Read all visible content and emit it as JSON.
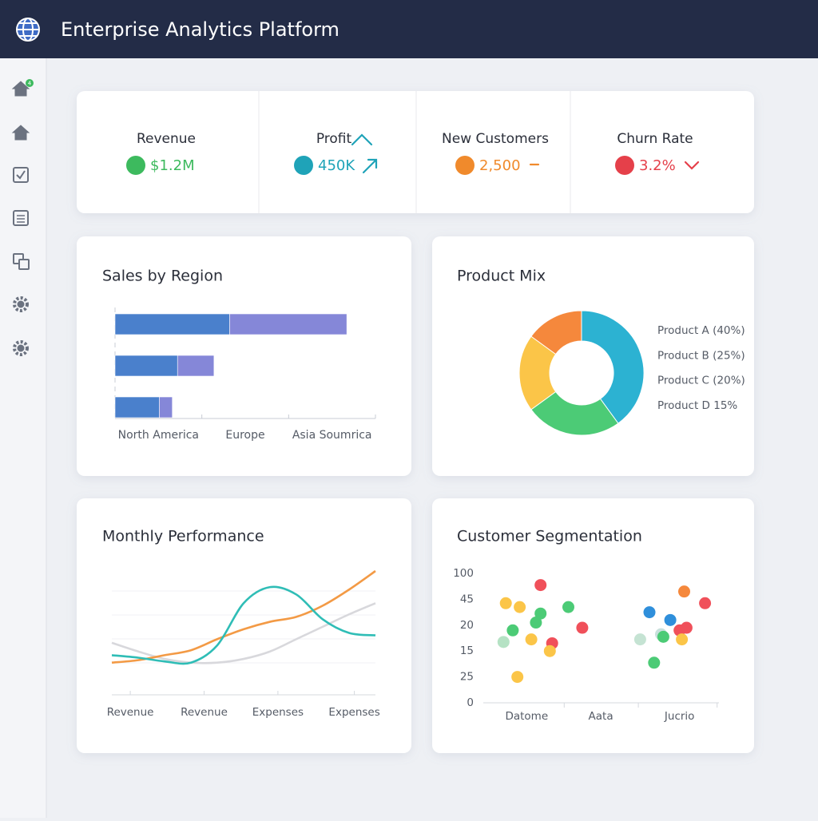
{
  "header": {
    "title": "Enterprise Analytics Platform"
  },
  "sidebar": {
    "badge": "4"
  },
  "kpis": [
    {
      "label": "Revenue",
      "value": "$1.2M",
      "color": "#3dba5e"
    },
    {
      "label": "Profit",
      "value": "450K",
      "color": "#1fa3b8"
    },
    {
      "label": "New Customers",
      "value": "2,500",
      "color": "#f08a2c"
    },
    {
      "label": "Churn Rate",
      "value": "3.2%",
      "color": "#e5404a"
    }
  ],
  "chart_data": [
    {
      "type": "hbar",
      "title": "Sales by Region",
      "categories": [
        "North America",
        "Europe",
        "Asia Soumrica"
      ],
      "xlim": [
        0,
        100
      ],
      "series": [
        {
          "color": "#4a80cc",
          "values": [
            44,
            24,
            17
          ]
        },
        {
          "color": "#8587d8",
          "values": [
            45,
            14,
            5
          ]
        }
      ]
    },
    {
      "type": "donut",
      "title": "Product Mix",
      "categories": [
        "Product A (40%)",
        "Product B (25%)",
        "Product C (20%)",
        "Product D 15%"
      ],
      "values": [
        40,
        25,
        20,
        15
      ],
      "colors": [
        "#2cb2d2",
        "#4ccb76",
        "#fbc548",
        "#f5883c"
      ]
    },
    {
      "type": "line",
      "title": "Monthly Performance",
      "x": [
        0,
        1,
        2,
        3,
        4,
        5,
        6,
        7,
        8,
        9,
        10
      ],
      "xlim": [
        0,
        10
      ],
      "ylim": [
        0,
        100
      ],
      "xticks": [
        {
          "value": 0.7,
          "label": "Revenue"
        },
        {
          "value": 3.5,
          "label": "Revenue"
        },
        {
          "value": 6.3,
          "label": "Expenses"
        },
        {
          "value": 9.2,
          "label": "Expenses"
        }
      ],
      "series": [
        {
          "color": "#d8d8dc",
          "values": [
            42,
            35,
            29,
            26,
            26,
            29,
            35,
            45,
            55,
            65,
            74
          ]
        },
        {
          "color": "#f39a45",
          "values": [
            26,
            28,
            32,
            36,
            45,
            53,
            59,
            63,
            72,
            85,
            100
          ]
        },
        {
          "color": "#2fbdb6",
          "values": [
            32,
            30,
            27,
            26,
            40,
            74,
            87,
            81,
            61,
            50,
            48
          ]
        }
      ]
    },
    {
      "type": "scatter",
      "title": "Customer Segmentation",
      "xlim": [
        0,
        100
      ],
      "ylim": [
        0,
        100
      ],
      "yticks": [
        {
          "value": 100,
          "label": "100"
        },
        {
          "value": 80,
          "label": "45"
        },
        {
          "value": 60,
          "label": "20"
        },
        {
          "value": 40,
          "label": "15"
        },
        {
          "value": 20,
          "label": "25"
        },
        0
      ],
      "xticks": [
        {
          "value": 17,
          "label": "Datome"
        },
        {
          "value": 49,
          "label": "Aata"
        },
        {
          "value": 83,
          "label": "Jucrio"
        }
      ],
      "x": [
        8,
        14,
        23,
        23,
        35,
        11,
        7,
        21,
        19,
        28,
        27,
        41,
        13,
        85,
        94,
        70,
        79,
        86,
        66,
        75,
        76,
        83,
        84,
        72
      ],
      "values": [
        77,
        74,
        91,
        69,
        74,
        56,
        47,
        62,
        49,
        46,
        40,
        58,
        20,
        86,
        77,
        70,
        64,
        58,
        49,
        53,
        51,
        56,
        49,
        31
      ],
      "colors": [
        "#fbc548",
        "#fbc548",
        "#f0505a",
        "#4ccb76",
        "#4ccb76",
        "#4ccb76",
        "#b5e2c4",
        "#4ccb76",
        "#fbc548",
        "#f0505a",
        "#fbc548",
        "#f0505a",
        "#fbc548",
        "#f5883c",
        "#f0505a",
        "#2f8fdb",
        "#2f8fdb",
        "#f0505a",
        "#c5e3d3",
        "#c9e0dc",
        "#4ccb76",
        "#f0505a",
        "#fbc548",
        "#4ccb76"
      ]
    }
  ]
}
